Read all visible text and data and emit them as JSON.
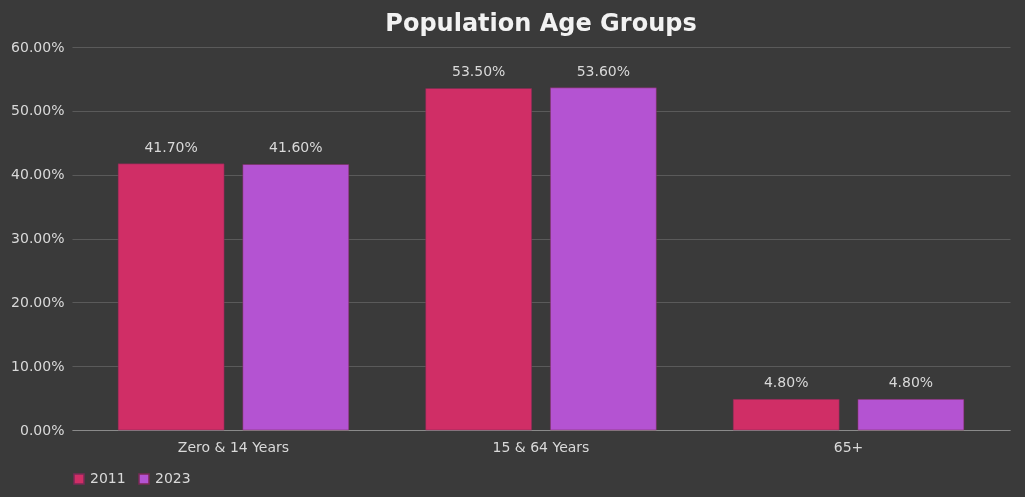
{
  "chart_data": {
    "type": "bar",
    "title": "Population Age Groups",
    "categories": [
      "Zero & 14 Years",
      "15 & 64 Years",
      "65+"
    ],
    "series": [
      {
        "name": "2011",
        "color": "#d02e66",
        "values": [
          41.7,
          53.5,
          4.8
        ],
        "value_labels": [
          "41.70%",
          "53.50%",
          "4.80%"
        ]
      },
      {
        "name": "2023",
        "color": "#b453d2",
        "values": [
          41.6,
          53.6,
          4.8
        ],
        "value_labels": [
          "41.60%",
          "53.60%",
          "4.80%"
        ]
      }
    ],
    "ylim": [
      0,
      60
    ],
    "yticks": [
      {
        "value": 0,
        "label": "0.00%"
      },
      {
        "value": 10,
        "label": "10.00%"
      },
      {
        "value": 20,
        "label": "20.00%"
      },
      {
        "value": 30,
        "label": "30.00%"
      },
      {
        "value": 40,
        "label": "40.00%"
      },
      {
        "value": 50,
        "label": "50.00%"
      },
      {
        "value": 60,
        "label": "60.00%"
      }
    ],
    "grid": "y",
    "legend": "bottom"
  }
}
